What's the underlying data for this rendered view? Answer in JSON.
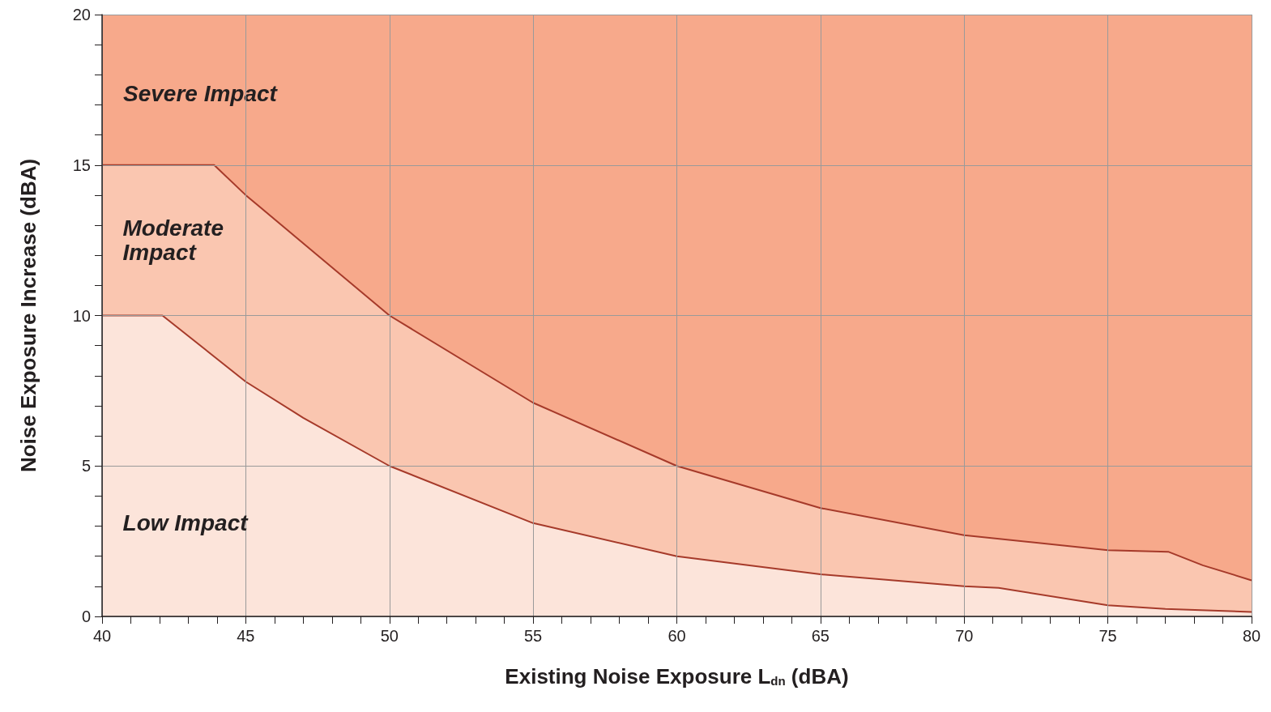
{
  "chart_data": {
    "type": "area",
    "xlabel": "Existing Noise Exposure L$_{dn}$ (dBA)",
    "ylabel": "Noise Exposure Increase (dBA)",
    "series": [
      {
        "name": "Moderate Impact",
        "color": "#fac6b0",
        "x": [
          40,
          43.9,
          45,
          47.5,
          50,
          55,
          60,
          65,
          70,
          75,
          77.1,
          78.3,
          80
        ],
        "values": [
          15,
          15,
          14,
          12,
          10,
          7.1,
          5,
          3.6,
          2.7,
          2.2,
          2.15,
          1.7,
          1.2
        ]
      },
      {
        "name": "Low Impact",
        "color": "#fce4da",
        "x": [
          40,
          42.1,
          45,
          47,
          50,
          55,
          60,
          65,
          70,
          71.2,
          75,
          77,
          80
        ],
        "values": [
          10,
          10,
          7.8,
          6.6,
          5,
          3.1,
          2,
          1.4,
          1,
          0.95,
          0.37,
          0.25,
          0.15
        ]
      }
    ],
    "bands": [
      {
        "axis": "y",
        "from": 0,
        "to": 20,
        "label": "Severe Impact",
        "color": "#f7a98b"
      }
    ],
    "xlim": [
      40,
      80
    ],
    "xticks": [
      40,
      {
        "value": 41,
        "label": null
      },
      {
        "value": 42,
        "label": null
      },
      {
        "value": 43,
        "label": null
      },
      {
        "value": 44,
        "label": null
      },
      45,
      {
        "value": 46,
        "label": null
      },
      {
        "value": 47,
        "label": null
      },
      {
        "value": 48,
        "label": null
      },
      {
        "value": 49,
        "label": null
      },
      50,
      {
        "value": 51,
        "label": null
      },
      {
        "value": 52,
        "label": null
      },
      {
        "value": 53,
        "label": null
      },
      {
        "value": 54,
        "label": null
      },
      55,
      {
        "value": 56,
        "label": null
      },
      {
        "value": 57,
        "label": null
      },
      {
        "value": 58,
        "label": null
      },
      {
        "value": 59,
        "label": null
      },
      60,
      {
        "value": 61,
        "label": null
      },
      {
        "value": 62,
        "label": null
      },
      {
        "value": 63,
        "label": null
      },
      {
        "value": 64,
        "label": null
      },
      65,
      {
        "value": 66,
        "label": null
      },
      {
        "value": 67,
        "label": null
      },
      {
        "value": 68,
        "label": null
      },
      {
        "value": 69,
        "label": null
      },
      70,
      {
        "value": 71,
        "label": null
      },
      {
        "value": 72,
        "label": null
      },
      {
        "value": 73,
        "label": null
      },
      {
        "value": 74,
        "label": null
      },
      75,
      {
        "value": 76,
        "label": null
      },
      {
        "value": 77,
        "label": null
      },
      {
        "value": 78,
        "label": null
      },
      {
        "value": 79,
        "label": null
      },
      80
    ],
    "ylim": [
      0,
      20
    ],
    "yticks": [
      0,
      {
        "value": 1,
        "label": null
      },
      {
        "value": 2,
        "label": null
      },
      {
        "value": 3,
        "label": null
      },
      {
        "value": 4,
        "label": null
      },
      5,
      {
        "value": 6,
        "label": null
      },
      {
        "value": 7,
        "label": null
      },
      {
        "value": 8,
        "label": null
      },
      {
        "value": 9,
        "label": null
      },
      10,
      {
        "value": 11,
        "label": null
      },
      {
        "value": 12,
        "label": null
      },
      {
        "value": 13,
        "label": null
      },
      {
        "value": 14,
        "label": null
      },
      15,
      {
        "value": 16,
        "label": null
      },
      {
        "value": 17,
        "label": null
      },
      {
        "value": 18,
        "label": null
      },
      {
        "value": 19,
        "label": null
      },
      20
    ],
    "grid": true,
    "marker": "none",
    "line_style": "solid"
  }
}
